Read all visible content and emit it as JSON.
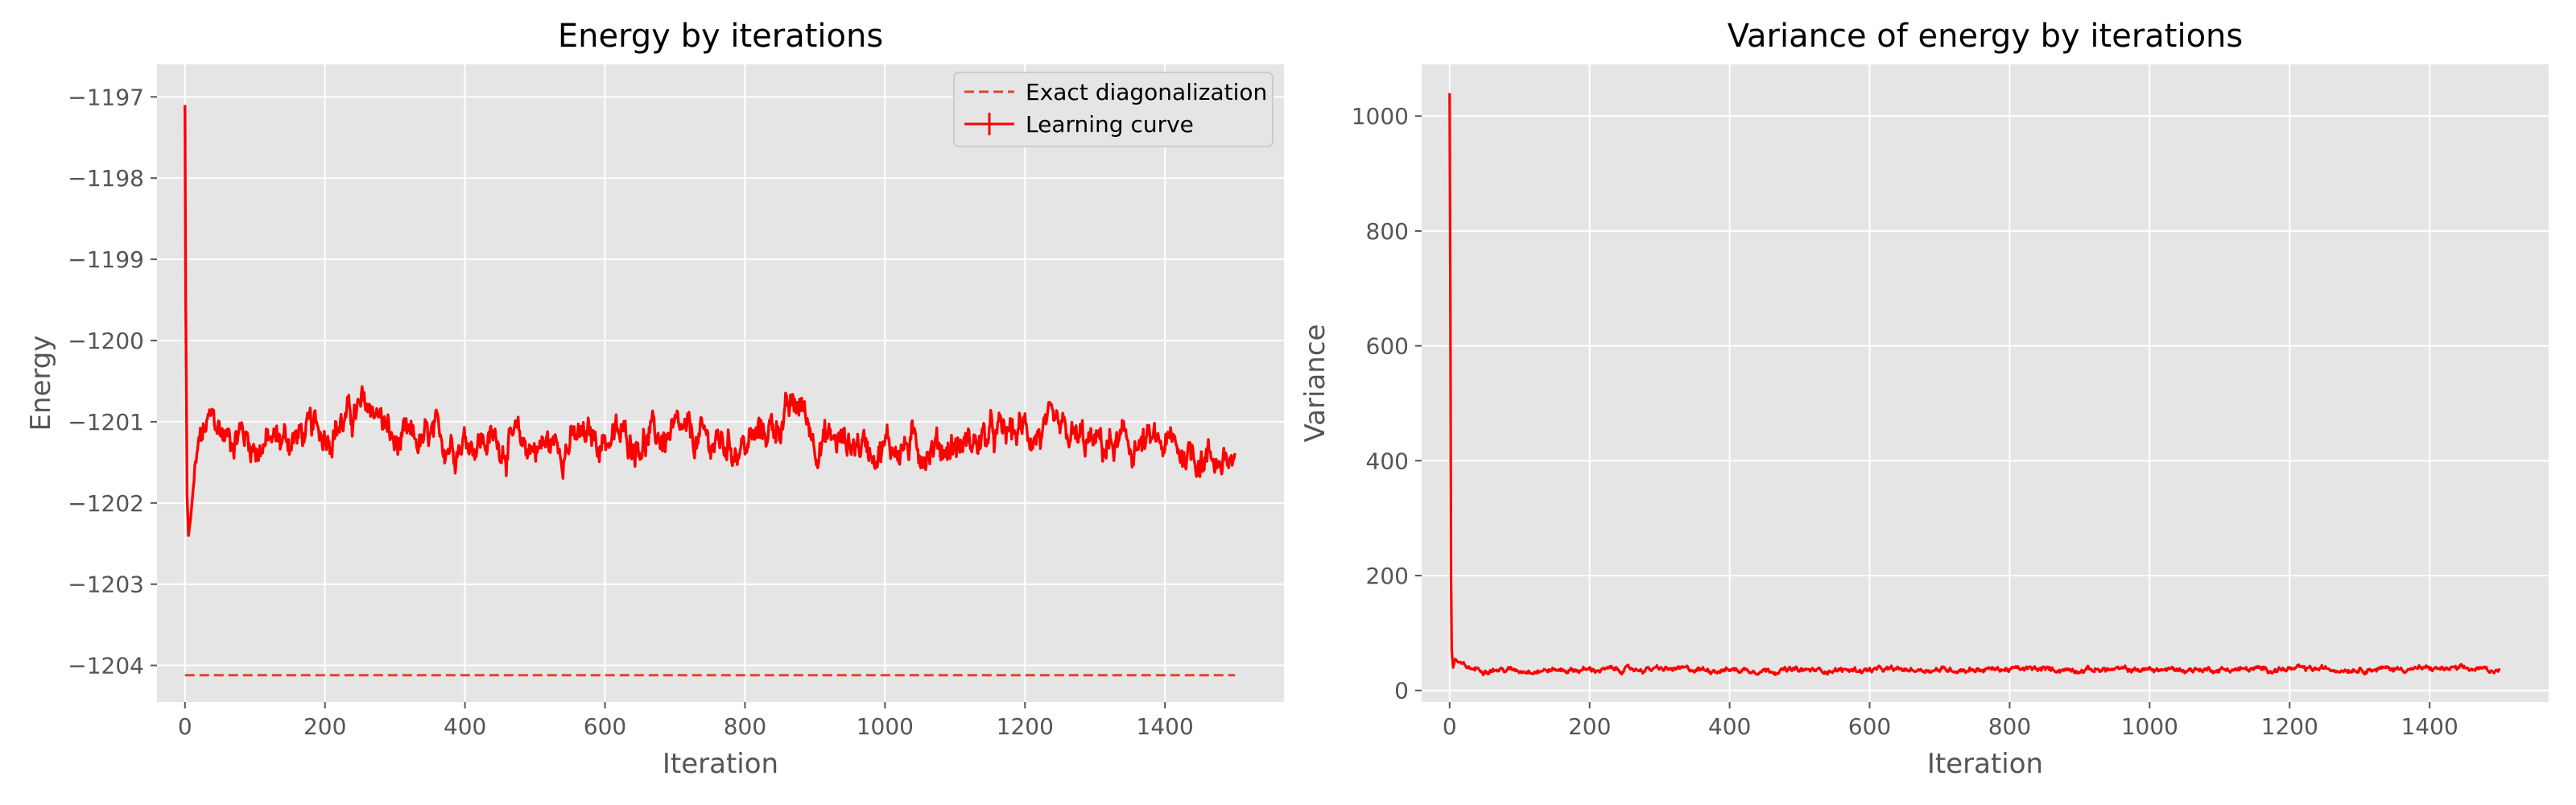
{
  "colors": {
    "axes_bg": "#e5e5e5",
    "grid": "#ffffff",
    "line": "#ff0000",
    "exact": "#e8412c",
    "tick_text": "#555555",
    "title_text": "#000000"
  },
  "chart_data": [
    {
      "type": "line",
      "title": "Energy by iterations",
      "xlabel": "Iteration",
      "ylabel": "Energy",
      "xlim": [
        -40,
        1570
      ],
      "ylim": [
        -1204.45,
        -1196.6
      ],
      "xticks": [
        0,
        200,
        400,
        600,
        800,
        1000,
        1200,
        1400
      ],
      "xtick_labels": [
        "0",
        "200",
        "400",
        "600",
        "800",
        "1000",
        "1200",
        "1400"
      ],
      "yticks": [
        -1197,
        -1198,
        -1199,
        -1200,
        -1201,
        -1202,
        -1203,
        -1204
      ],
      "ytick_labels": [
        "−1197",
        "−1198",
        "−1199",
        "−1200",
        "−1201",
        "−1202",
        "−1203",
        "−1204"
      ],
      "grid": true,
      "legend_position": "top-right",
      "series": [
        {
          "name": "Exact diagonalization",
          "style": "dashed",
          "x": [
            0,
            1500
          ],
          "y": [
            -1204.12,
            -1204.12
          ]
        },
        {
          "name": "Learning curve",
          "style": "solid-with-errorbars",
          "x": [
            0,
            1,
            2,
            3,
            5,
            8,
            12,
            20,
            30,
            40,
            60,
            80,
            100,
            150,
            200,
            270,
            300,
            400,
            500,
            600,
            700,
            800,
            880,
            900,
            1000,
            1100,
            1200,
            1300,
            1400,
            1500
          ],
          "y": [
            -1197.1,
            -1199.5,
            -1200.6,
            -1201.9,
            -1202.4,
            -1202.2,
            -1201.8,
            -1201.3,
            -1201.1,
            -1201.0,
            -1201.2,
            -1201.1,
            -1201.3,
            -1201.2,
            -1201.1,
            -1200.8,
            -1201.3,
            -1201.2,
            -1201.3,
            -1201.2,
            -1201.2,
            -1201.3,
            -1200.8,
            -1201.2,
            -1201.3,
            -1201.3,
            -1201.1,
            -1201.3,
            -1201.3,
            -1201.5
          ],
          "noise_amplitude": 0.28
        }
      ]
    },
    {
      "type": "line",
      "title": "Variance of energy by iterations",
      "xlabel": "Iteration",
      "ylabel": "Variance",
      "xlim": [
        -40,
        1570
      ],
      "ylim": [
        -20,
        1090
      ],
      "xticks": [
        0,
        200,
        400,
        600,
        800,
        1000,
        1200,
        1400
      ],
      "xtick_labels": [
        "0",
        "200",
        "400",
        "600",
        "800",
        "1000",
        "1200",
        "1400"
      ],
      "yticks": [
        0,
        200,
        400,
        600,
        800,
        1000
      ],
      "ytick_labels": [
        "0",
        "200",
        "400",
        "600",
        "800",
        "1000"
      ],
      "grid": true,
      "series": [
        {
          "style": "solid",
          "x": [
            0,
            1,
            2,
            3,
            5,
            8,
            15,
            30,
            100,
            300,
            500,
            800,
            1000,
            1200,
            1400,
            1500
          ],
          "y": [
            1040,
            700,
            200,
            70,
            40,
            55,
            45,
            38,
            35,
            37,
            35,
            37,
            36,
            37,
            38,
            36
          ],
          "noise_amplitude": 6
        }
      ]
    }
  ]
}
